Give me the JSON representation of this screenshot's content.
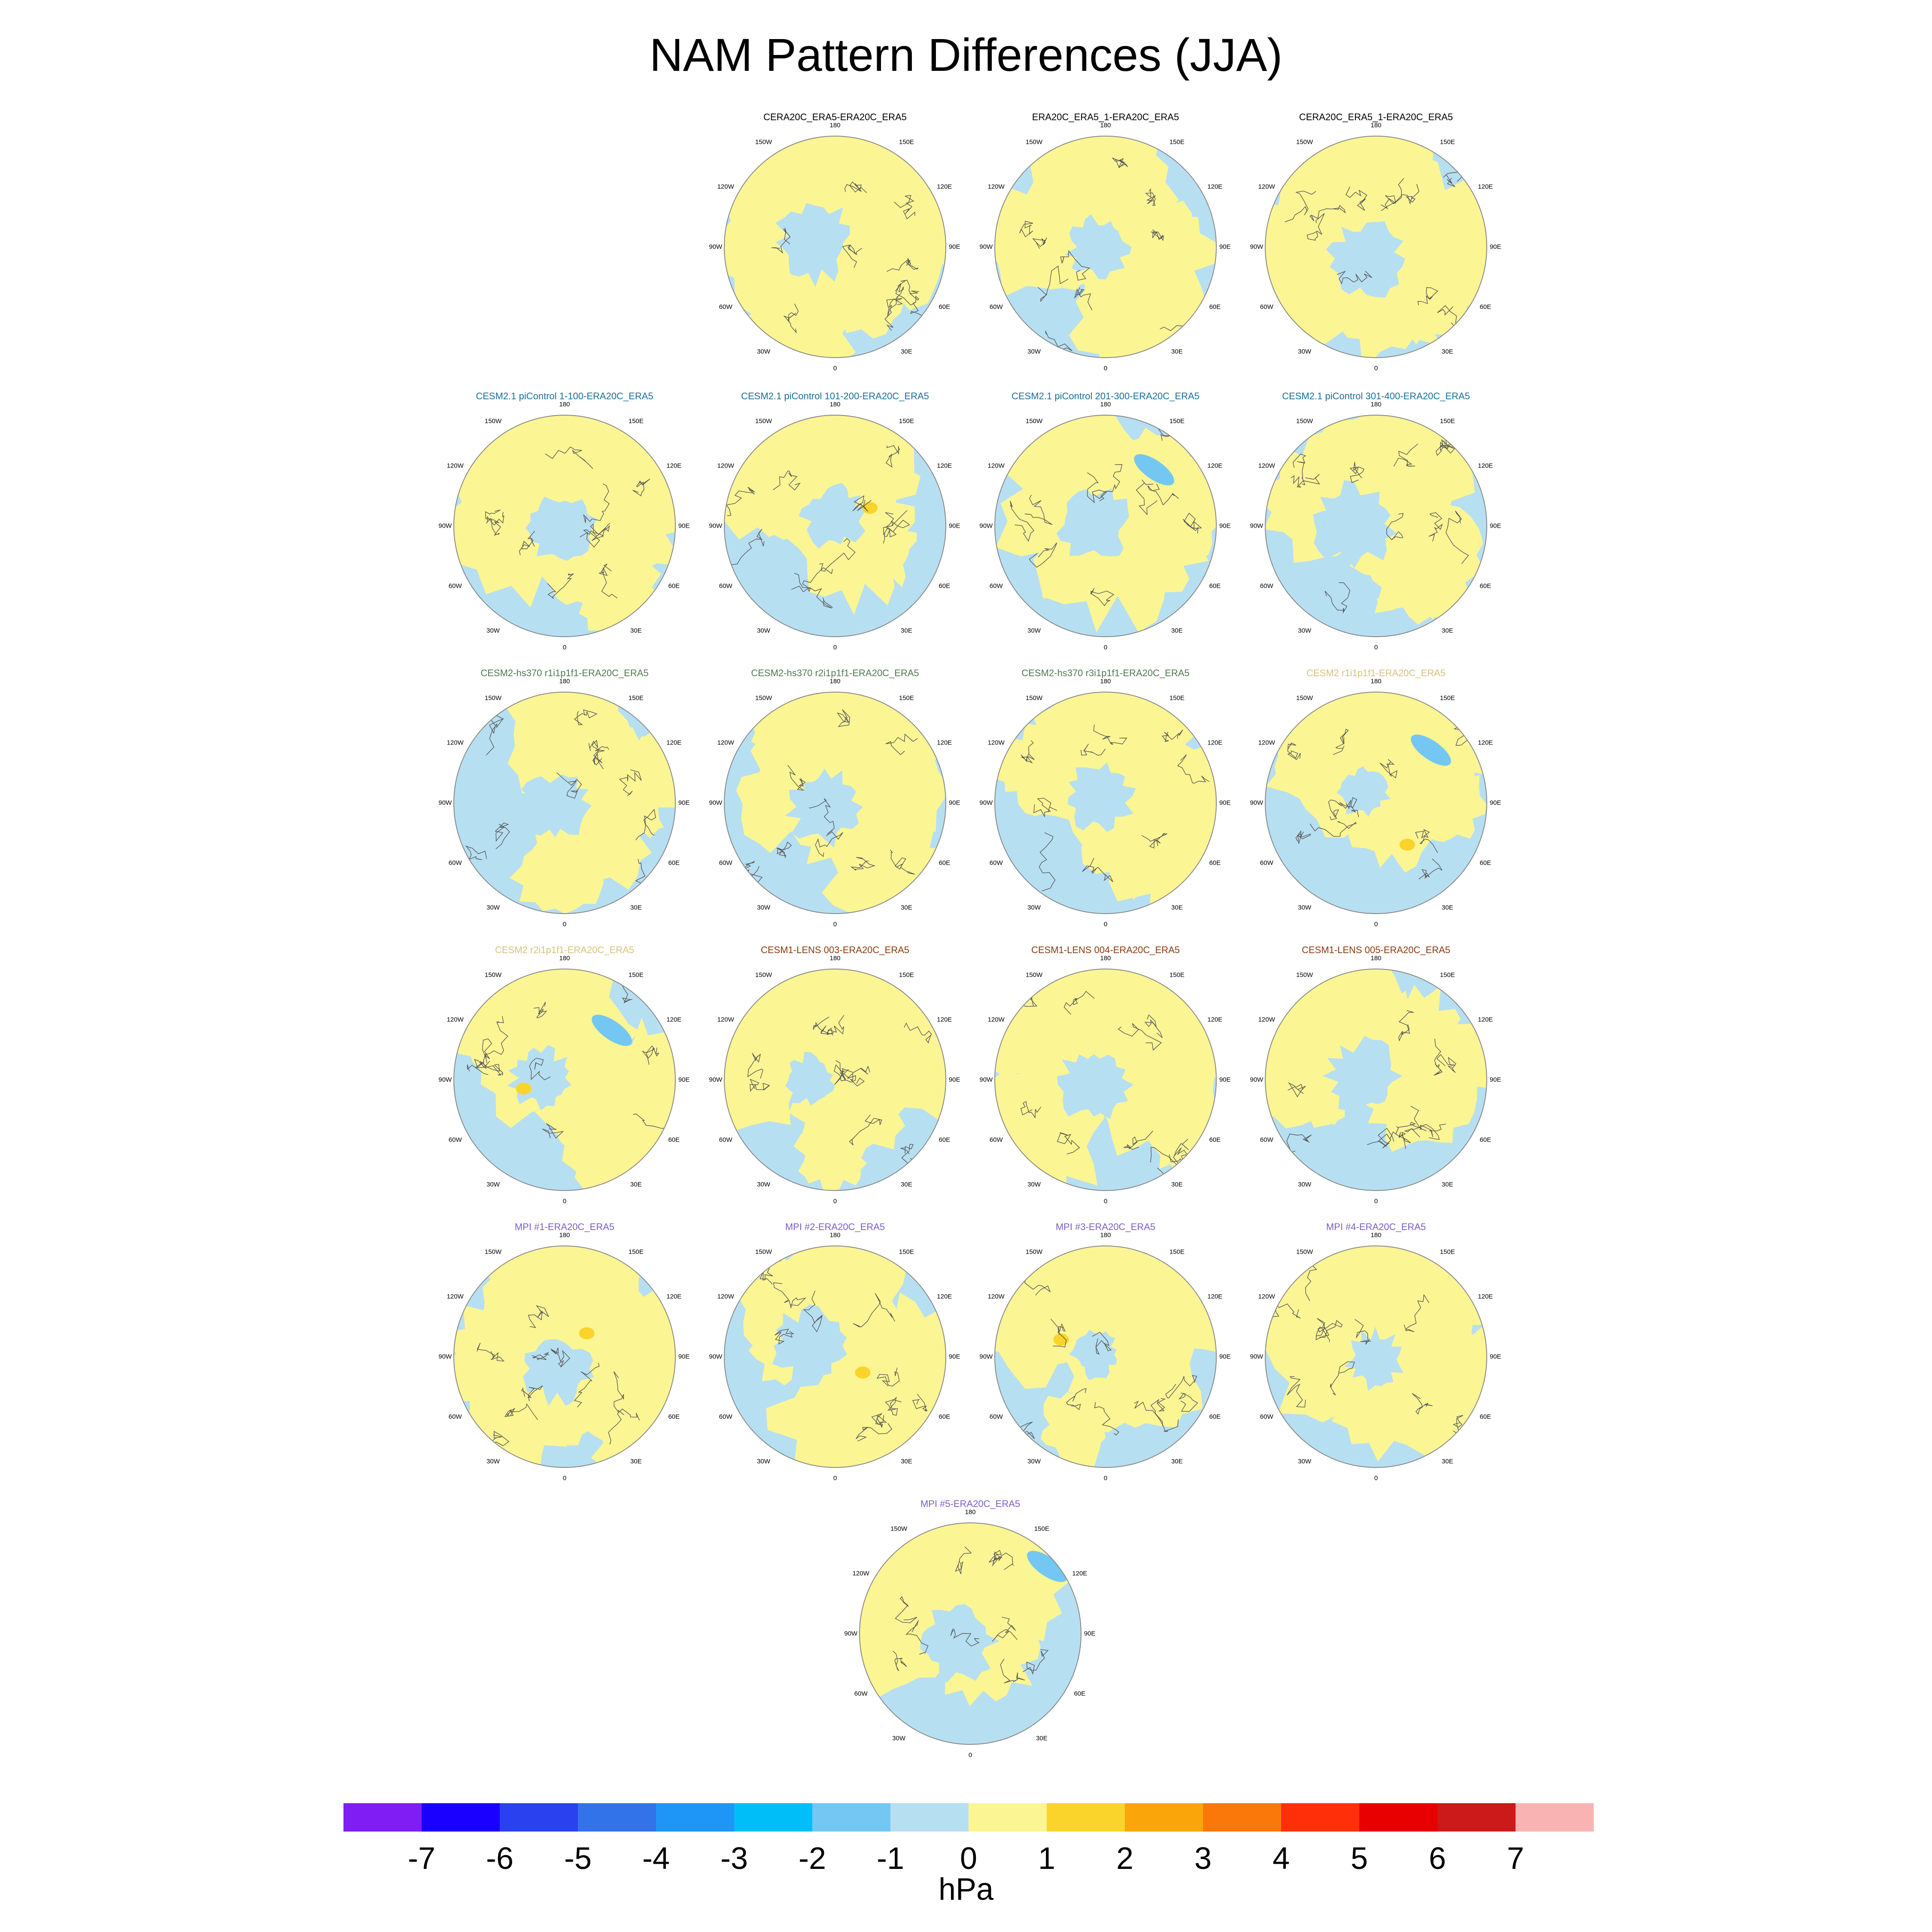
{
  "title": "NAM Pattern Differences (JJA)",
  "units": "hPa",
  "colors": {
    "fill_neg_0_1": "#b7dff2",
    "fill_pos_0_1": "#fbf594",
    "fill_pos_1_2": "#fad42a",
    "fill_neg_1_2": "#73c7f2",
    "coastline": "#555555"
  },
  "colorbar": {
    "colors": [
      "#7f1df4",
      "#1a00ff",
      "#2a41ef",
      "#3373ea",
      "#1e96f8",
      "#00bff8",
      "#73c7f2",
      "#b7dff2",
      "#fbf594",
      "#fad42a",
      "#faa60a",
      "#fa780a",
      "#ff2f0a",
      "#e80000",
      "#cc1919",
      "#f9b3b3"
    ],
    "tick_labels": [
      "-7",
      "-6",
      "-5",
      "-4",
      "-3",
      "-2",
      "-1",
      "0",
      "1",
      "2",
      "3",
      "4",
      "5",
      "6",
      "7"
    ]
  },
  "map_labels": {
    "top": "180",
    "top_left": "150W",
    "top_right": "150E",
    "upper_left": "120W",
    "upper_right": "120E",
    "left": "90W",
    "right": "90E",
    "lower_left": "60W",
    "lower_right": "60E",
    "bottom_left": "30W",
    "bottom_right": "30E",
    "bottom": "0"
  },
  "panels": [
    {
      "title": "CERA20C_ERA5-ERA20C_ERA5",
      "title_color": "#000000",
      "variant": 0
    },
    {
      "title": "ERA20C_ERA5_1-ERA20C_ERA5",
      "title_color": "#000000",
      "variant": 1
    },
    {
      "title": "CERA20C_ERA5_1-ERA20C_ERA5",
      "title_color": "#000000",
      "variant": 2
    },
    {
      "title": "CESM2.1 piControl 1-100-ERA20C_ERA5",
      "title_color": "#1a6e9a",
      "variant": 3
    },
    {
      "title": "CESM2.1 piControl 101-200-ERA20C_ERA5",
      "title_color": "#1a6e9a",
      "variant": 4
    },
    {
      "title": "CESM2.1 piControl 201-300-ERA20C_ERA5",
      "title_color": "#1a6e9a",
      "variant": 5
    },
    {
      "title": "CESM2.1 piControl 301-400-ERA20C_ERA5",
      "title_color": "#1a6e9a",
      "variant": 6
    },
    {
      "title": "CESM2-hs370 r1i1p1f1-ERA20C_ERA5",
      "title_color": "#4f7a4f",
      "variant": 7
    },
    {
      "title": "CESM2-hs370 r2i1p1f1-ERA20C_ERA5",
      "title_color": "#4f7a4f",
      "variant": 8
    },
    {
      "title": "CESM2-hs370 r3i1p1f1-ERA20C_ERA5",
      "title_color": "#4f7a4f",
      "variant": 9
    },
    {
      "title": "CESM2 r1i1p1f1-ERA20C_ERA5",
      "title_color": "#d7c27a",
      "variant": 10
    },
    {
      "title": "CESM2 r2i1p1f1-ERA20C_ERA5",
      "title_color": "#d7c27a",
      "variant": 11
    },
    {
      "title": "CESM1-LENS 003-ERA20C_ERA5",
      "title_color": "#8b3a0e",
      "variant": 12
    },
    {
      "title": "CESM1-LENS 004-ERA20C_ERA5",
      "title_color": "#8b3a0e",
      "variant": 13
    },
    {
      "title": "CESM1-LENS 005-ERA20C_ERA5",
      "title_color": "#8b3a0e",
      "variant": 14
    },
    {
      "title": "MPI #1-ERA20C_ERA5",
      "title_color": "#7a5ec8",
      "variant": 15
    },
    {
      "title": "MPI #2-ERA20C_ERA5",
      "title_color": "#7a5ec8",
      "variant": 16
    },
    {
      "title": "MPI #3-ERA20C_ERA5",
      "title_color": "#7a5ec8",
      "variant": 17
    },
    {
      "title": "MPI #4-ERA20C_ERA5",
      "title_color": "#7a5ec8",
      "variant": 18
    },
    {
      "title": "MPI #5-ERA20C_ERA5",
      "title_color": "#7a5ec8",
      "variant": 19
    }
  ]
}
